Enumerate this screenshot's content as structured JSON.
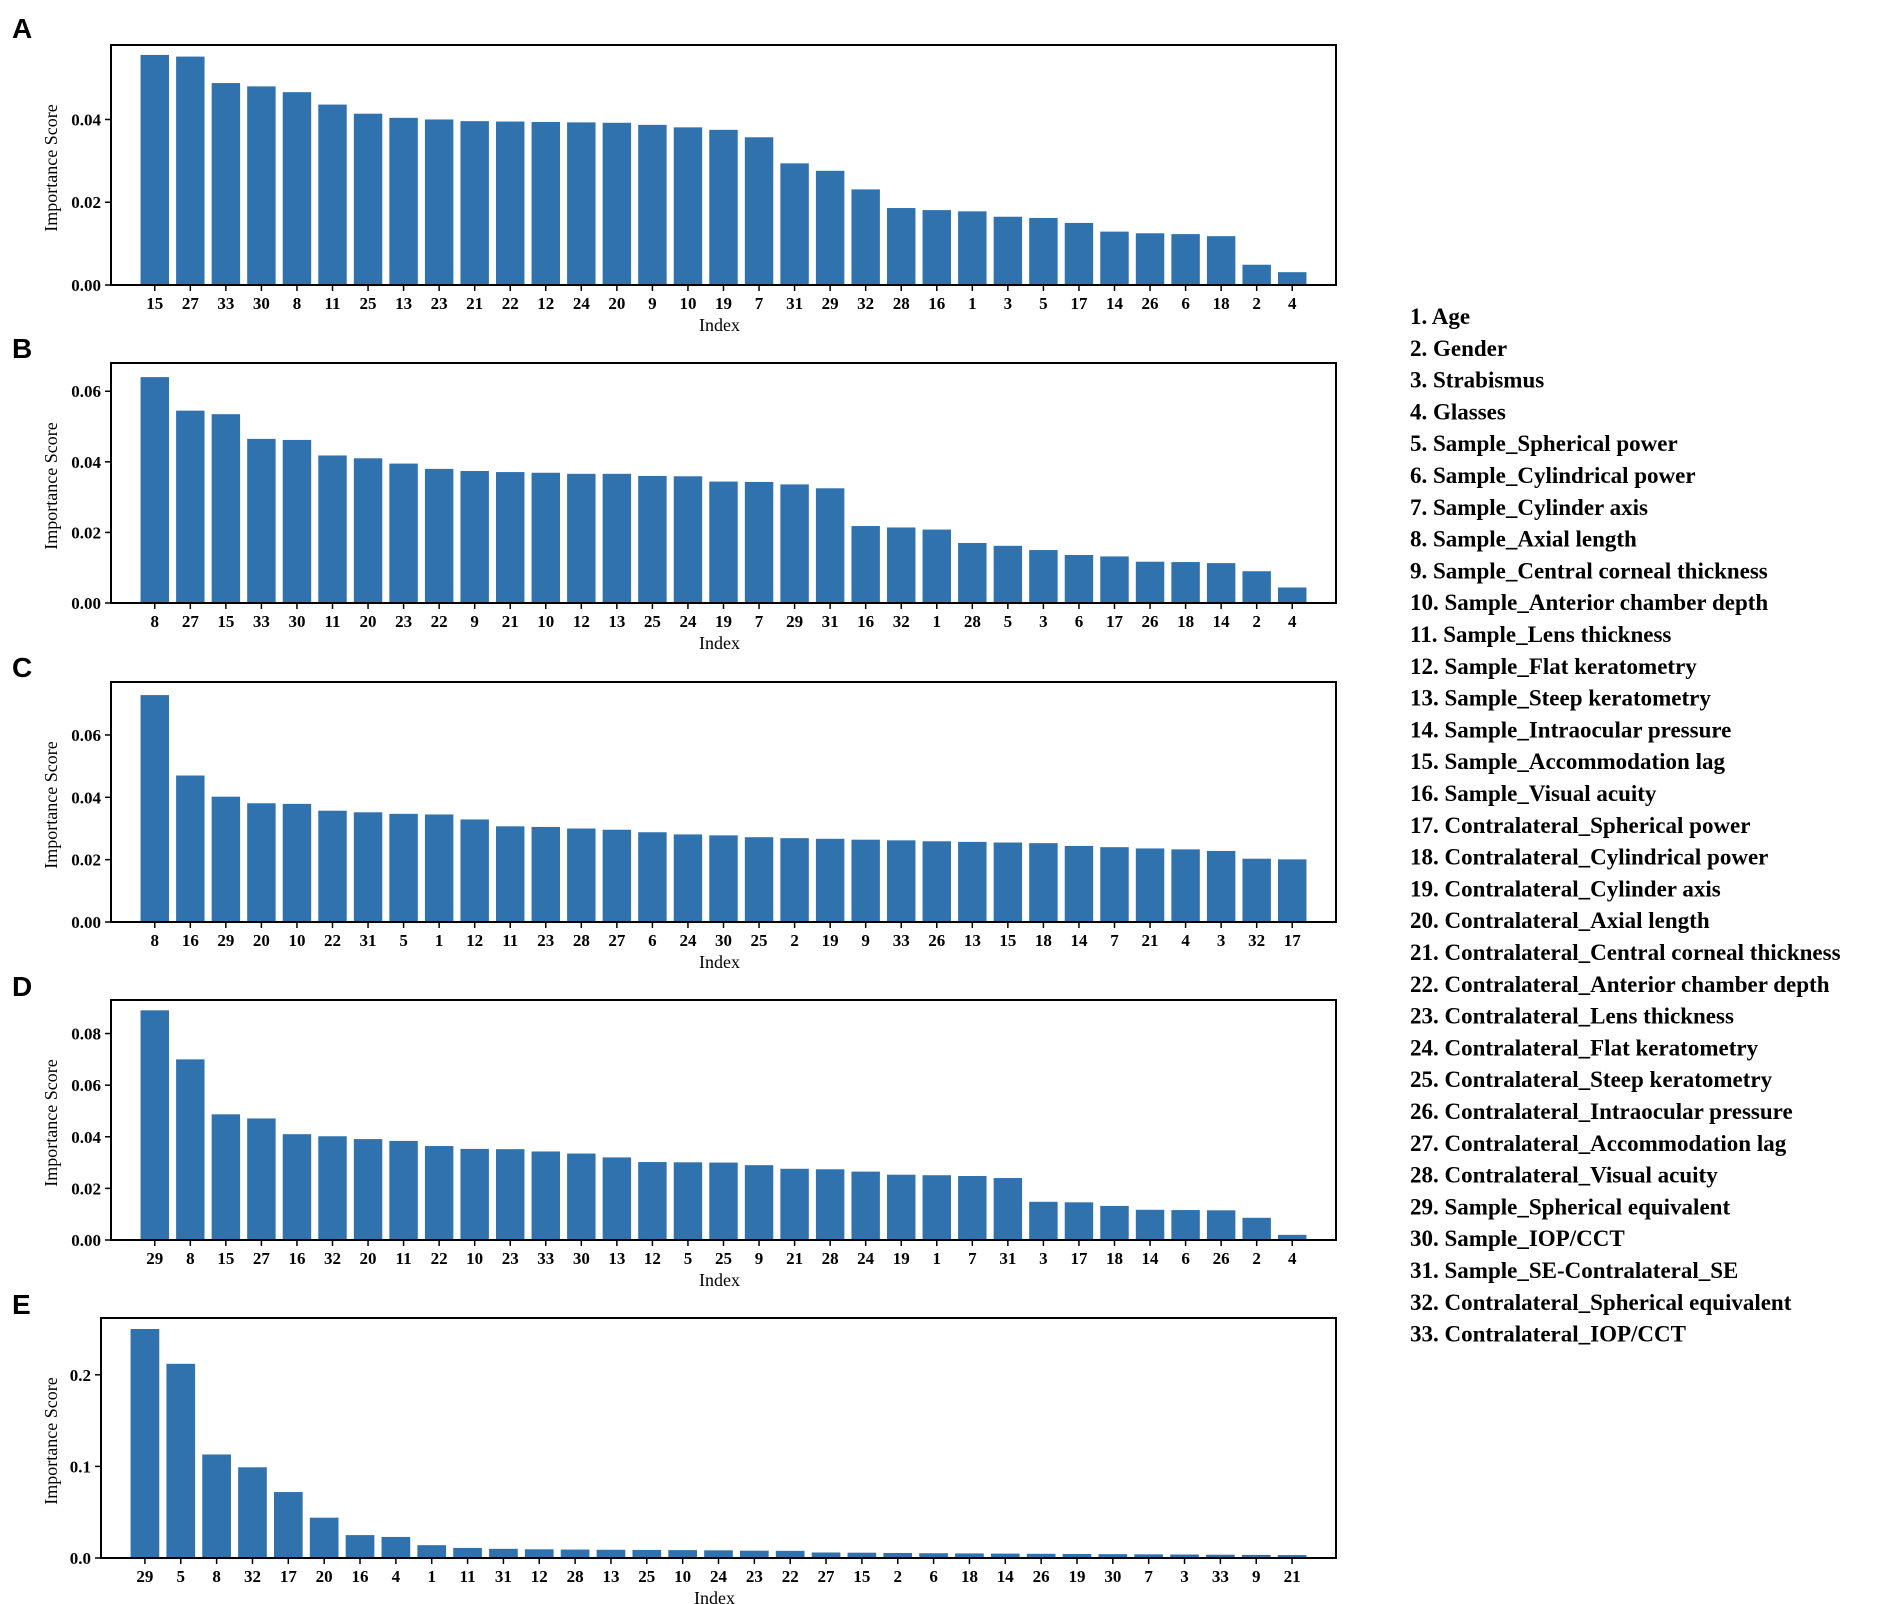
{
  "chart_data": [
    {
      "panel": "A",
      "type": "bar",
      "xlabel": "Index",
      "ylabel": "Importance Score",
      "ylim": [
        0,
        0.058
      ],
      "yticks": [
        0.0,
        0.02,
        0.04
      ],
      "ytick_labels": [
        "0.00",
        "0.02",
        "0.04"
      ],
      "color": "#2f72ad",
      "categories": [
        "15",
        "27",
        "33",
        "30",
        "8",
        "11",
        "25",
        "13",
        "23",
        "21",
        "22",
        "12",
        "24",
        "20",
        "9",
        "10",
        "19",
        "7",
        "31",
        "29",
        "32",
        "28",
        "16",
        "1",
        "3",
        "5",
        "17",
        "14",
        "26",
        "6",
        "18",
        "2",
        "4"
      ],
      "values": [
        0.0556,
        0.0552,
        0.0488,
        0.048,
        0.0466,
        0.0436,
        0.0414,
        0.0404,
        0.04,
        0.0396,
        0.0395,
        0.0394,
        0.0393,
        0.0392,
        0.0387,
        0.0381,
        0.0375,
        0.0357,
        0.0294,
        0.0276,
        0.0231,
        0.0186,
        0.0181,
        0.0178,
        0.0165,
        0.0162,
        0.015,
        0.0129,
        0.0125,
        0.0123,
        0.0118,
        0.0049,
        0.0031
      ]
    },
    {
      "panel": "B",
      "type": "bar",
      "xlabel": "Index",
      "ylabel": "Importance Score",
      "ylim": [
        0,
        0.068
      ],
      "yticks": [
        0.0,
        0.02,
        0.04,
        0.06
      ],
      "ytick_labels": [
        "0.00",
        "0.02",
        "0.04",
        "0.06"
      ],
      "color": "#2f72ad",
      "categories": [
        "8",
        "27",
        "15",
        "33",
        "30",
        "11",
        "20",
        "23",
        "22",
        "9",
        "21",
        "10",
        "12",
        "13",
        "25",
        "24",
        "19",
        "7",
        "29",
        "31",
        "16",
        "32",
        "1",
        "28",
        "5",
        "3",
        "6",
        "17",
        "26",
        "18",
        "14",
        "2",
        "4"
      ],
      "values": [
        0.064,
        0.0545,
        0.0535,
        0.0465,
        0.0462,
        0.0418,
        0.041,
        0.0395,
        0.038,
        0.0374,
        0.0371,
        0.0369,
        0.0366,
        0.0366,
        0.036,
        0.0359,
        0.0344,
        0.0343,
        0.0336,
        0.0325,
        0.0218,
        0.0214,
        0.0208,
        0.017,
        0.0162,
        0.015,
        0.0136,
        0.0132,
        0.0117,
        0.0116,
        0.0113,
        0.009,
        0.0044
      ]
    },
    {
      "panel": "C",
      "type": "bar",
      "xlabel": "Index",
      "ylabel": "Importance Score",
      "ylim": [
        0,
        0.077
      ],
      "yticks": [
        0.0,
        0.02,
        0.04,
        0.06
      ],
      "ytick_labels": [
        "0.00",
        "0.02",
        "0.04",
        "0.06"
      ],
      "color": "#2f72ad",
      "categories": [
        "8",
        "16",
        "29",
        "20",
        "10",
        "22",
        "31",
        "5",
        "1",
        "12",
        "11",
        "23",
        "28",
        "27",
        "6",
        "24",
        "30",
        "25",
        "2",
        "19",
        "9",
        "33",
        "26",
        "13",
        "15",
        "18",
        "14",
        "7",
        "21",
        "4",
        "3",
        "32",
        "17"
      ],
      "values": [
        0.0728,
        0.047,
        0.0402,
        0.0381,
        0.0379,
        0.0357,
        0.0352,
        0.0347,
        0.0345,
        0.0329,
        0.0307,
        0.0305,
        0.03,
        0.0296,
        0.0288,
        0.0281,
        0.0278,
        0.0272,
        0.0269,
        0.0267,
        0.0264,
        0.0262,
        0.0259,
        0.0257,
        0.0255,
        0.0253,
        0.0244,
        0.024,
        0.0236,
        0.0233,
        0.0228,
        0.0203,
        0.0201
      ]
    },
    {
      "panel": "D",
      "type": "bar",
      "xlabel": "Index",
      "ylabel": "Importance Score",
      "ylim": [
        0,
        0.093
      ],
      "yticks": [
        0.0,
        0.02,
        0.04,
        0.06,
        0.08
      ],
      "ytick_labels": [
        "0.00",
        "0.02",
        "0.04",
        "0.06",
        "0.08"
      ],
      "color": "#2f72ad",
      "categories": [
        "29",
        "8",
        "15",
        "27",
        "16",
        "32",
        "20",
        "11",
        "22",
        "10",
        "23",
        "33",
        "30",
        "13",
        "12",
        "5",
        "25",
        "9",
        "21",
        "28",
        "24",
        "19",
        "1",
        "7",
        "31",
        "3",
        "17",
        "18",
        "14",
        "6",
        "26",
        "2",
        "4"
      ],
      "values": [
        0.089,
        0.07,
        0.0487,
        0.0471,
        0.041,
        0.0402,
        0.0391,
        0.0384,
        0.0364,
        0.0353,
        0.0352,
        0.0343,
        0.0335,
        0.032,
        0.0302,
        0.0301,
        0.03,
        0.029,
        0.0276,
        0.0274,
        0.0265,
        0.0253,
        0.0251,
        0.0248,
        0.024,
        0.0148,
        0.0146,
        0.0132,
        0.0117,
        0.0116,
        0.0115,
        0.0086,
        0.002
      ]
    },
    {
      "panel": "E",
      "type": "bar",
      "xlabel": "Index",
      "ylabel": "Importance Score",
      "ylim": [
        0,
        0.262
      ],
      "yticks": [
        0.0,
        0.1,
        0.2
      ],
      "ytick_labels": [
        "0.0",
        "0.1",
        "0.2"
      ],
      "color": "#2f72ad",
      "categories": [
        "29",
        "5",
        "8",
        "32",
        "17",
        "20",
        "16",
        "4",
        "1",
        "11",
        "31",
        "12",
        "28",
        "13",
        "25",
        "10",
        "24",
        "23",
        "22",
        "27",
        "15",
        "2",
        "6",
        "18",
        "14",
        "26",
        "19",
        "30",
        "7",
        "3",
        "33",
        "9",
        "21"
      ],
      "values": [
        0.25,
        0.212,
        0.113,
        0.099,
        0.072,
        0.044,
        0.025,
        0.023,
        0.014,
        0.011,
        0.01,
        0.0095,
        0.0092,
        0.009,
        0.0088,
        0.0086,
        0.0084,
        0.008,
        0.0078,
        0.006,
        0.0058,
        0.0055,
        0.0052,
        0.005,
        0.0048,
        0.0046,
        0.0044,
        0.0042,
        0.004,
        0.0038,
        0.0036,
        0.0034,
        0.0032
      ]
    }
  ],
  "legend": [
    "1. Age",
    "2. Gender",
    "3. Strabismus",
    "4. Glasses",
    "5. Sample_Spherical power",
    "6. Sample_Cylindrical power",
    "7. Sample_Cylinder axis",
    "8. Sample_Axial length",
    "9. Sample_Central corneal thickness",
    "10. Sample_Anterior chamber depth",
    "11. Sample_Lens thickness",
    "12. Sample_Flat keratometry",
    "13. Sample_Steep keratometry",
    "14. Sample_Intraocular pressure",
    "15. Sample_Accommodation lag",
    "16. Sample_Visual acuity",
    "17. Contralateral_Spherical power",
    "18. Contralateral_Cylindrical power",
    "19. Contralateral_Cylinder axis",
    "20. Contralateral_Axial length",
    "21. Contralateral_Central corneal thickness",
    "22. Contralateral_Anterior chamber depth",
    "23. Contralateral_Lens thickness",
    "24. Contralateral_Flat keratometry",
    "25. Contralateral_Steep keratometry",
    "26. Contralateral_Intraocular pressure",
    "27. Contralateral_Accommodation lag",
    "28. Contralateral_Visual acuity",
    "29. Sample_Spherical equivalent",
    "30. Sample_IOP/CCT",
    "31. Sample_SE-Contralateral_SE",
    "32. Contralateral_Spherical equivalent",
    "33. Contralateral_IOP/CCT"
  ]
}
